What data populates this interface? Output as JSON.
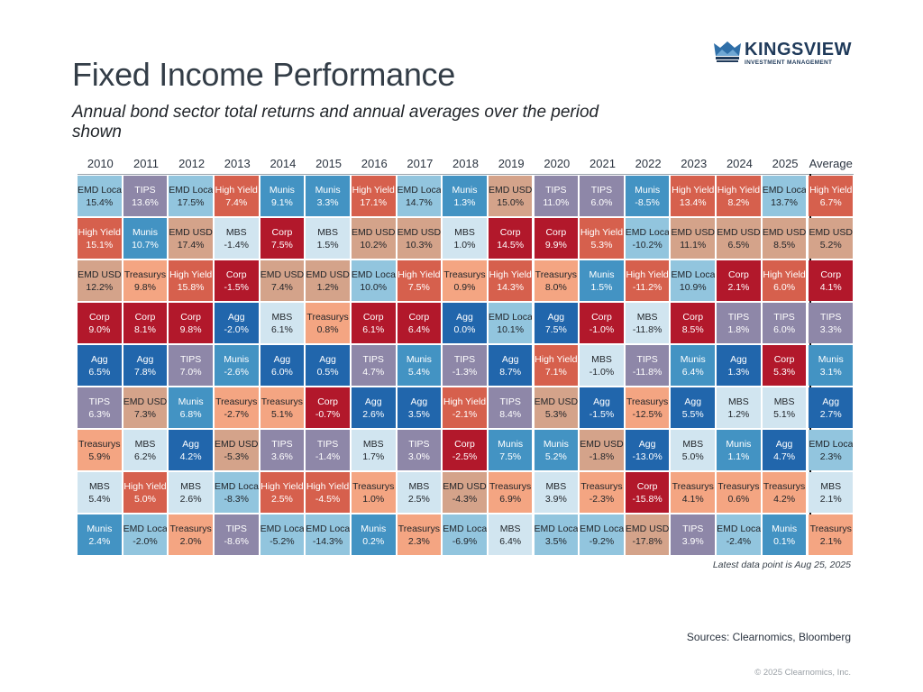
{
  "header": {
    "title": "Fixed Income Performance",
    "subtitle": "Annual bond sector total returns and annual averages over the period shown"
  },
  "logo": {
    "icon": "crown-mountain-icon",
    "name": "KINGSVIEW",
    "tagline": "INVESTMENT MANAGEMENT"
  },
  "footer": {
    "note": "Latest data point is Aug 25, 2025",
    "sources": "Sources: Clearnomics, Bloomberg",
    "copyright": "© 2025 Clearnomics, Inc."
  },
  "sector_colors": {
    "EMD Local": {
      "bg": "#92c5de",
      "fg": "#1f2328"
    },
    "TIPS": {
      "bg": "#8e87a8",
      "fg": "#ffffff"
    },
    "High Yield": {
      "bg": "#d6604d",
      "fg": "#ffffff"
    },
    "Munis": {
      "bg": "#4393c3",
      "fg": "#ffffff"
    },
    "Corp": {
      "bg": "#b2182b",
      "fg": "#ffffff"
    },
    "MBS": {
      "bg": "#d1e5f0",
      "fg": "#1f2328"
    },
    "EMD USD": {
      "bg": "#d4a38a",
      "fg": "#1f2328"
    },
    "Treasurys": {
      "bg": "#f4a582",
      "fg": "#1f2328"
    },
    "Agg": {
      "bg": "#2166ac",
      "fg": "#ffffff"
    }
  },
  "chart_data": {
    "type": "table",
    "title": "Fixed Income Performance",
    "subtitle": "Annual bond sector total returns and annual averages over the period shown",
    "description": "Periodic table of returns; each column ranked from highest to lowest return",
    "columns": [
      "2010",
      "2011",
      "2012",
      "2013",
      "2014",
      "2015",
      "2016",
      "2017",
      "2018",
      "2019",
      "2020",
      "2021",
      "2022",
      "2023",
      "2024",
      "2025",
      "Average"
    ],
    "ranked": [
      [
        [
          "EMD Local",
          "15.4%"
        ],
        [
          "High Yield",
          "15.1%"
        ],
        [
          "EMD USD",
          "12.2%"
        ],
        [
          "Corp",
          "9.0%"
        ],
        [
          "Agg",
          "6.5%"
        ],
        [
          "TIPS",
          "6.3%"
        ],
        [
          "Treasurys",
          "5.9%"
        ],
        [
          "MBS",
          "5.4%"
        ],
        [
          "Munis",
          "2.4%"
        ]
      ],
      [
        [
          "TIPS",
          "13.6%"
        ],
        [
          "Munis",
          "10.7%"
        ],
        [
          "Treasurys",
          "9.8%"
        ],
        [
          "Corp",
          "8.1%"
        ],
        [
          "Agg",
          "7.8%"
        ],
        [
          "EMD USD",
          "7.3%"
        ],
        [
          "MBS",
          "6.2%"
        ],
        [
          "High Yield",
          "5.0%"
        ],
        [
          "EMD Local",
          "-2.0%"
        ]
      ],
      [
        [
          "EMD Local",
          "17.5%"
        ],
        [
          "EMD USD",
          "17.4%"
        ],
        [
          "High Yield",
          "15.8%"
        ],
        [
          "Corp",
          "9.8%"
        ],
        [
          "TIPS",
          "7.0%"
        ],
        [
          "Munis",
          "6.8%"
        ],
        [
          "Agg",
          "4.2%"
        ],
        [
          "MBS",
          "2.6%"
        ],
        [
          "Treasurys",
          "2.0%"
        ]
      ],
      [
        [
          "High Yield",
          "7.4%"
        ],
        [
          "MBS",
          "-1.4%"
        ],
        [
          "Corp",
          "-1.5%"
        ],
        [
          "Agg",
          "-2.0%"
        ],
        [
          "Munis",
          "-2.6%"
        ],
        [
          "Treasurys",
          "-2.7%"
        ],
        [
          "EMD USD",
          "-5.3%"
        ],
        [
          "EMD Local",
          "-8.3%"
        ],
        [
          "TIPS",
          "-8.6%"
        ]
      ],
      [
        [
          "Munis",
          "9.1%"
        ],
        [
          "Corp",
          "7.5%"
        ],
        [
          "EMD USD",
          "7.4%"
        ],
        [
          "MBS",
          "6.1%"
        ],
        [
          "Agg",
          "6.0%"
        ],
        [
          "Treasurys",
          "5.1%"
        ],
        [
          "TIPS",
          "3.6%"
        ],
        [
          "High Yield",
          "2.5%"
        ],
        [
          "EMD Local",
          "-5.2%"
        ]
      ],
      [
        [
          "Munis",
          "3.3%"
        ],
        [
          "MBS",
          "1.5%"
        ],
        [
          "EMD USD",
          "1.2%"
        ],
        [
          "Treasurys",
          "0.8%"
        ],
        [
          "Agg",
          "0.5%"
        ],
        [
          "Corp",
          "-0.7%"
        ],
        [
          "TIPS",
          "-1.4%"
        ],
        [
          "High Yield",
          "-4.5%"
        ],
        [
          "EMD Local",
          "-14.3%"
        ]
      ],
      [
        [
          "High Yield",
          "17.1%"
        ],
        [
          "EMD USD",
          "10.2%"
        ],
        [
          "EMD Local",
          "10.0%"
        ],
        [
          "Corp",
          "6.1%"
        ],
        [
          "TIPS",
          "4.7%"
        ],
        [
          "Agg",
          "2.6%"
        ],
        [
          "MBS",
          "1.7%"
        ],
        [
          "Treasurys",
          "1.0%"
        ],
        [
          "Munis",
          "0.2%"
        ]
      ],
      [
        [
          "EMD Local",
          "14.7%"
        ],
        [
          "EMD USD",
          "10.3%"
        ],
        [
          "High Yield",
          "7.5%"
        ],
        [
          "Corp",
          "6.4%"
        ],
        [
          "Munis",
          "5.4%"
        ],
        [
          "Agg",
          "3.5%"
        ],
        [
          "TIPS",
          "3.0%"
        ],
        [
          "MBS",
          "2.5%"
        ],
        [
          "Treasurys",
          "2.3%"
        ]
      ],
      [
        [
          "Munis",
          "1.3%"
        ],
        [
          "MBS",
          "1.0%"
        ],
        [
          "Treasurys",
          "0.9%"
        ],
        [
          "Agg",
          "0.0%"
        ],
        [
          "TIPS",
          "-1.3%"
        ],
        [
          "High Yield",
          "-2.1%"
        ],
        [
          "Corp",
          "-2.5%"
        ],
        [
          "EMD USD",
          "-4.3%"
        ],
        [
          "EMD Local",
          "-6.9%"
        ]
      ],
      [
        [
          "EMD USD",
          "15.0%"
        ],
        [
          "Corp",
          "14.5%"
        ],
        [
          "High Yield",
          "14.3%"
        ],
        [
          "EMD Local",
          "10.1%"
        ],
        [
          "Agg",
          "8.7%"
        ],
        [
          "TIPS",
          "8.4%"
        ],
        [
          "Munis",
          "7.5%"
        ],
        [
          "Treasurys",
          "6.9%"
        ],
        [
          "MBS",
          "6.4%"
        ]
      ],
      [
        [
          "TIPS",
          "11.0%"
        ],
        [
          "Corp",
          "9.9%"
        ],
        [
          "Treasurys",
          "8.0%"
        ],
        [
          "Agg",
          "7.5%"
        ],
        [
          "High Yield",
          "7.1%"
        ],
        [
          "EMD USD",
          "5.3%"
        ],
        [
          "Munis",
          "5.2%"
        ],
        [
          "MBS",
          "3.9%"
        ],
        [
          "EMD Local",
          "3.5%"
        ]
      ],
      [
        [
          "TIPS",
          "6.0%"
        ],
        [
          "High Yield",
          "5.3%"
        ],
        [
          "Munis",
          "1.5%"
        ],
        [
          "Corp",
          "-1.0%"
        ],
        [
          "MBS",
          "-1.0%"
        ],
        [
          "Agg",
          "-1.5%"
        ],
        [
          "EMD USD",
          "-1.8%"
        ],
        [
          "Treasurys",
          "-2.3%"
        ],
        [
          "EMD Local",
          "-9.2%"
        ]
      ],
      [
        [
          "Munis",
          "-8.5%"
        ],
        [
          "EMD Local",
          "-10.2%"
        ],
        [
          "High Yield",
          "-11.2%"
        ],
        [
          "MBS",
          "-11.8%"
        ],
        [
          "TIPS",
          "-11.8%"
        ],
        [
          "Treasurys",
          "-12.5%"
        ],
        [
          "Agg",
          "-13.0%"
        ],
        [
          "Corp",
          "-15.8%"
        ],
        [
          "EMD USD",
          "-17.8%"
        ]
      ],
      [
        [
          "High Yield",
          "13.4%"
        ],
        [
          "EMD USD",
          "11.1%"
        ],
        [
          "EMD Local",
          "10.9%"
        ],
        [
          "Corp",
          "8.5%"
        ],
        [
          "Munis",
          "6.4%"
        ],
        [
          "Agg",
          "5.5%"
        ],
        [
          "MBS",
          "5.0%"
        ],
        [
          "Treasurys",
          "4.1%"
        ],
        [
          "TIPS",
          "3.9%"
        ]
      ],
      [
        [
          "High Yield",
          "8.2%"
        ],
        [
          "EMD USD",
          "6.5%"
        ],
        [
          "Corp",
          "2.1%"
        ],
        [
          "TIPS",
          "1.8%"
        ],
        [
          "Agg",
          "1.3%"
        ],
        [
          "MBS",
          "1.2%"
        ],
        [
          "Munis",
          "1.1%"
        ],
        [
          "Treasurys",
          "0.6%"
        ],
        [
          "EMD Local",
          "-2.4%"
        ]
      ],
      [
        [
          "EMD Local",
          "13.7%"
        ],
        [
          "EMD USD",
          "8.5%"
        ],
        [
          "High Yield",
          "6.0%"
        ],
        [
          "TIPS",
          "6.0%"
        ],
        [
          "Corp",
          "5.3%"
        ],
        [
          "MBS",
          "5.1%"
        ],
        [
          "Agg",
          "4.7%"
        ],
        [
          "Treasurys",
          "4.2%"
        ],
        [
          "Munis",
          "0.1%"
        ]
      ],
      [
        [
          "High Yield",
          "6.7%"
        ],
        [
          "EMD USD",
          "5.2%"
        ],
        [
          "Corp",
          "4.1%"
        ],
        [
          "TIPS",
          "3.3%"
        ],
        [
          "Munis",
          "3.1%"
        ],
        [
          "Agg",
          "2.7%"
        ],
        [
          "EMD Local",
          "2.3%"
        ],
        [
          "MBS",
          "2.1%"
        ],
        [
          "Treasurys",
          "2.1%"
        ]
      ]
    ]
  }
}
